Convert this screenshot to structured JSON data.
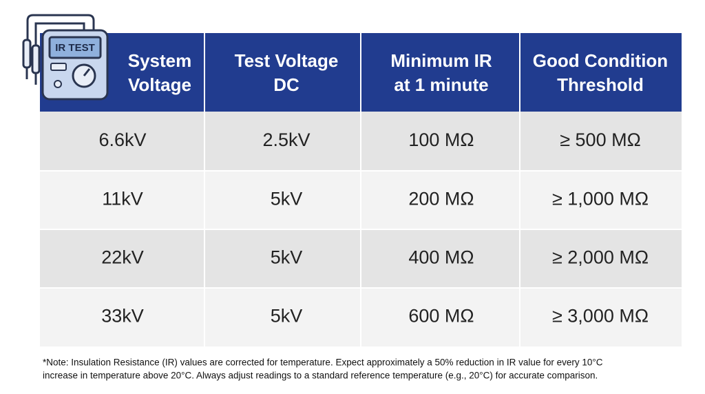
{
  "icon": {
    "label": "IR TEST"
  },
  "table": {
    "header": [
      [
        "System",
        "Voltage"
      ],
      [
        "Test Voltage",
        "DC"
      ],
      [
        "Minimum IR",
        "at 1 minute"
      ],
      [
        "Good Condition",
        "Threshold"
      ]
    ],
    "rows": [
      [
        "6.6kV",
        "2.5kV",
        "100 MΩ",
        "≥ 500 MΩ"
      ],
      [
        "11kV",
        "5kV",
        "200 MΩ",
        "≥ 1,000 MΩ"
      ],
      [
        "22kV",
        "5kV",
        "400 MΩ",
        "≥ 2,000 MΩ"
      ],
      [
        "33kV",
        "5kV",
        "600 MΩ",
        "≥ 3,000 MΩ"
      ]
    ]
  },
  "note": [
    "*Note: Insulation Resistance (IR) values are corrected for temperature. Expect approximately a 50% reduction in IR value for every 10°C",
    "increase in temperature above 20°C. Always adjust readings to a standard reference temperature (e.g., 20°C) for accurate comparison."
  ]
}
